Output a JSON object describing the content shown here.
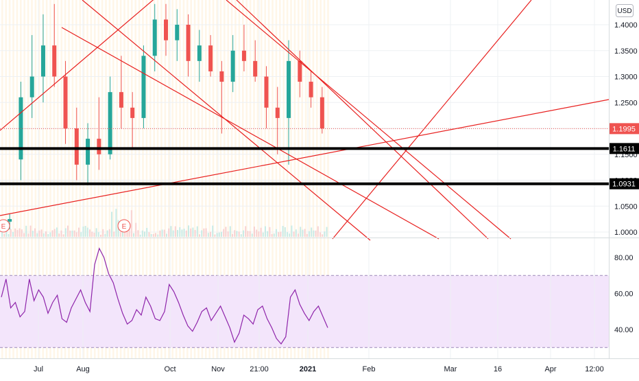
{
  "currency_button": "USD",
  "colors": {
    "up": "#26a69a",
    "down": "#ef5350",
    "drawing": "#e8201f",
    "level": "#000000",
    "rsi_line": "#8e24aa",
    "rsi_band": "#f3e5fb",
    "session_stripe": "#fff3e0",
    "price_badge": "#ef5350"
  },
  "price_axis": {
    "ticks": [
      "1.4000",
      "1.3500",
      "1.3000",
      "1.2500",
      "1.2000",
      "1.1500",
      "1.1000",
      "1.0500",
      "1.0000"
    ]
  },
  "rsi_axis": {
    "ticks": [
      "80.00",
      "60.00",
      "40.00"
    ]
  },
  "time_axis": {
    "ticks": [
      "Jul",
      "Aug",
      "Oct",
      "Nov",
      "21:00",
      "2021",
      "Feb",
      "Mar",
      "16",
      "Apr",
      "12:00"
    ]
  },
  "badges": {
    "last_price": "1.1995",
    "level_upper": "1.1611",
    "level_lower": "1.0931"
  },
  "earnings_markers": [
    "E",
    "E"
  ],
  "chart_data": {
    "type": "candlestick",
    "currency": "USD",
    "price_range": [
      0.99,
      1.445
    ],
    "last_price": 1.1995,
    "horizontal_levels": [
      1.1611,
      1.0931
    ],
    "earnings_events": 2,
    "candles_visible_range": [
      "Jun",
      "Jan 2021"
    ],
    "candles": [
      {
        "o": 1.02,
        "h": 1.035,
        "l": 1.005,
        "c": 1.025
      },
      {
        "o": 1.14,
        "h": 1.29,
        "l": 1.1,
        "c": 1.26
      },
      {
        "o": 1.26,
        "h": 1.38,
        "l": 1.22,
        "c": 1.3
      },
      {
        "o": 1.3,
        "h": 1.42,
        "l": 1.25,
        "c": 1.36
      },
      {
        "o": 1.36,
        "h": 1.44,
        "l": 1.28,
        "c": 1.3
      },
      {
        "o": 1.3,
        "h": 1.33,
        "l": 1.17,
        "c": 1.2
      },
      {
        "o": 1.2,
        "h": 1.24,
        "l": 1.1,
        "c": 1.13
      },
      {
        "o": 1.13,
        "h": 1.21,
        "l": 1.09,
        "c": 1.18
      },
      {
        "o": 1.18,
        "h": 1.26,
        "l": 1.12,
        "c": 1.15
      },
      {
        "o": 1.15,
        "h": 1.3,
        "l": 1.14,
        "c": 1.27
      },
      {
        "o": 1.27,
        "h": 1.34,
        "l": 1.2,
        "c": 1.24
      },
      {
        "o": 1.24,
        "h": 1.27,
        "l": 1.16,
        "c": 1.22
      },
      {
        "o": 1.22,
        "h": 1.36,
        "l": 1.2,
        "c": 1.34
      },
      {
        "o": 1.34,
        "h": 1.44,
        "l": 1.31,
        "c": 1.41
      },
      {
        "o": 1.41,
        "h": 1.44,
        "l": 1.34,
        "c": 1.37
      },
      {
        "o": 1.37,
        "h": 1.43,
        "l": 1.33,
        "c": 1.4
      },
      {
        "o": 1.4,
        "h": 1.42,
        "l": 1.3,
        "c": 1.33
      },
      {
        "o": 1.33,
        "h": 1.39,
        "l": 1.29,
        "c": 1.36
      },
      {
        "o": 1.36,
        "h": 1.38,
        "l": 1.3,
        "c": 1.31
      },
      {
        "o": 1.31,
        "h": 1.33,
        "l": 1.19,
        "c": 1.29
      },
      {
        "o": 1.29,
        "h": 1.38,
        "l": 1.27,
        "c": 1.35
      },
      {
        "o": 1.35,
        "h": 1.4,
        "l": 1.31,
        "c": 1.33
      },
      {
        "o": 1.33,
        "h": 1.37,
        "l": 1.29,
        "c": 1.3
      },
      {
        "o": 1.3,
        "h": 1.32,
        "l": 1.2,
        "c": 1.24
      },
      {
        "o": 1.24,
        "h": 1.28,
        "l": 1.15,
        "c": 1.22
      },
      {
        "o": 1.22,
        "h": 1.37,
        "l": 1.13,
        "c": 1.33
      },
      {
        "o": 1.33,
        "h": 1.35,
        "l": 1.26,
        "c": 1.29
      },
      {
        "o": 1.29,
        "h": 1.31,
        "l": 1.24,
        "c": 1.26
      },
      {
        "o": 1.26,
        "h": 1.28,
        "l": 1.19,
        "c": 1.2
      }
    ],
    "rsi": {
      "levels": [
        70,
        30
      ],
      "range": [
        26,
        92
      ],
      "values": [
        58,
        68,
        52,
        55,
        47,
        50,
        68,
        56,
        62,
        58,
        49,
        55,
        59,
        46,
        44,
        52,
        57,
        62,
        55,
        50,
        76,
        85,
        80,
        71,
        66,
        57,
        49,
        43,
        45,
        51,
        48,
        58,
        53,
        46,
        45,
        50,
        65,
        61,
        55,
        48,
        42,
        39,
        44,
        50,
        52,
        45,
        49,
        53,
        47,
        41,
        33,
        38,
        48,
        46,
        43,
        51,
        53,
        46,
        41,
        35,
        32,
        36,
        58,
        62,
        54,
        49,
        45,
        50,
        53,
        47,
        41
      ]
    }
  }
}
